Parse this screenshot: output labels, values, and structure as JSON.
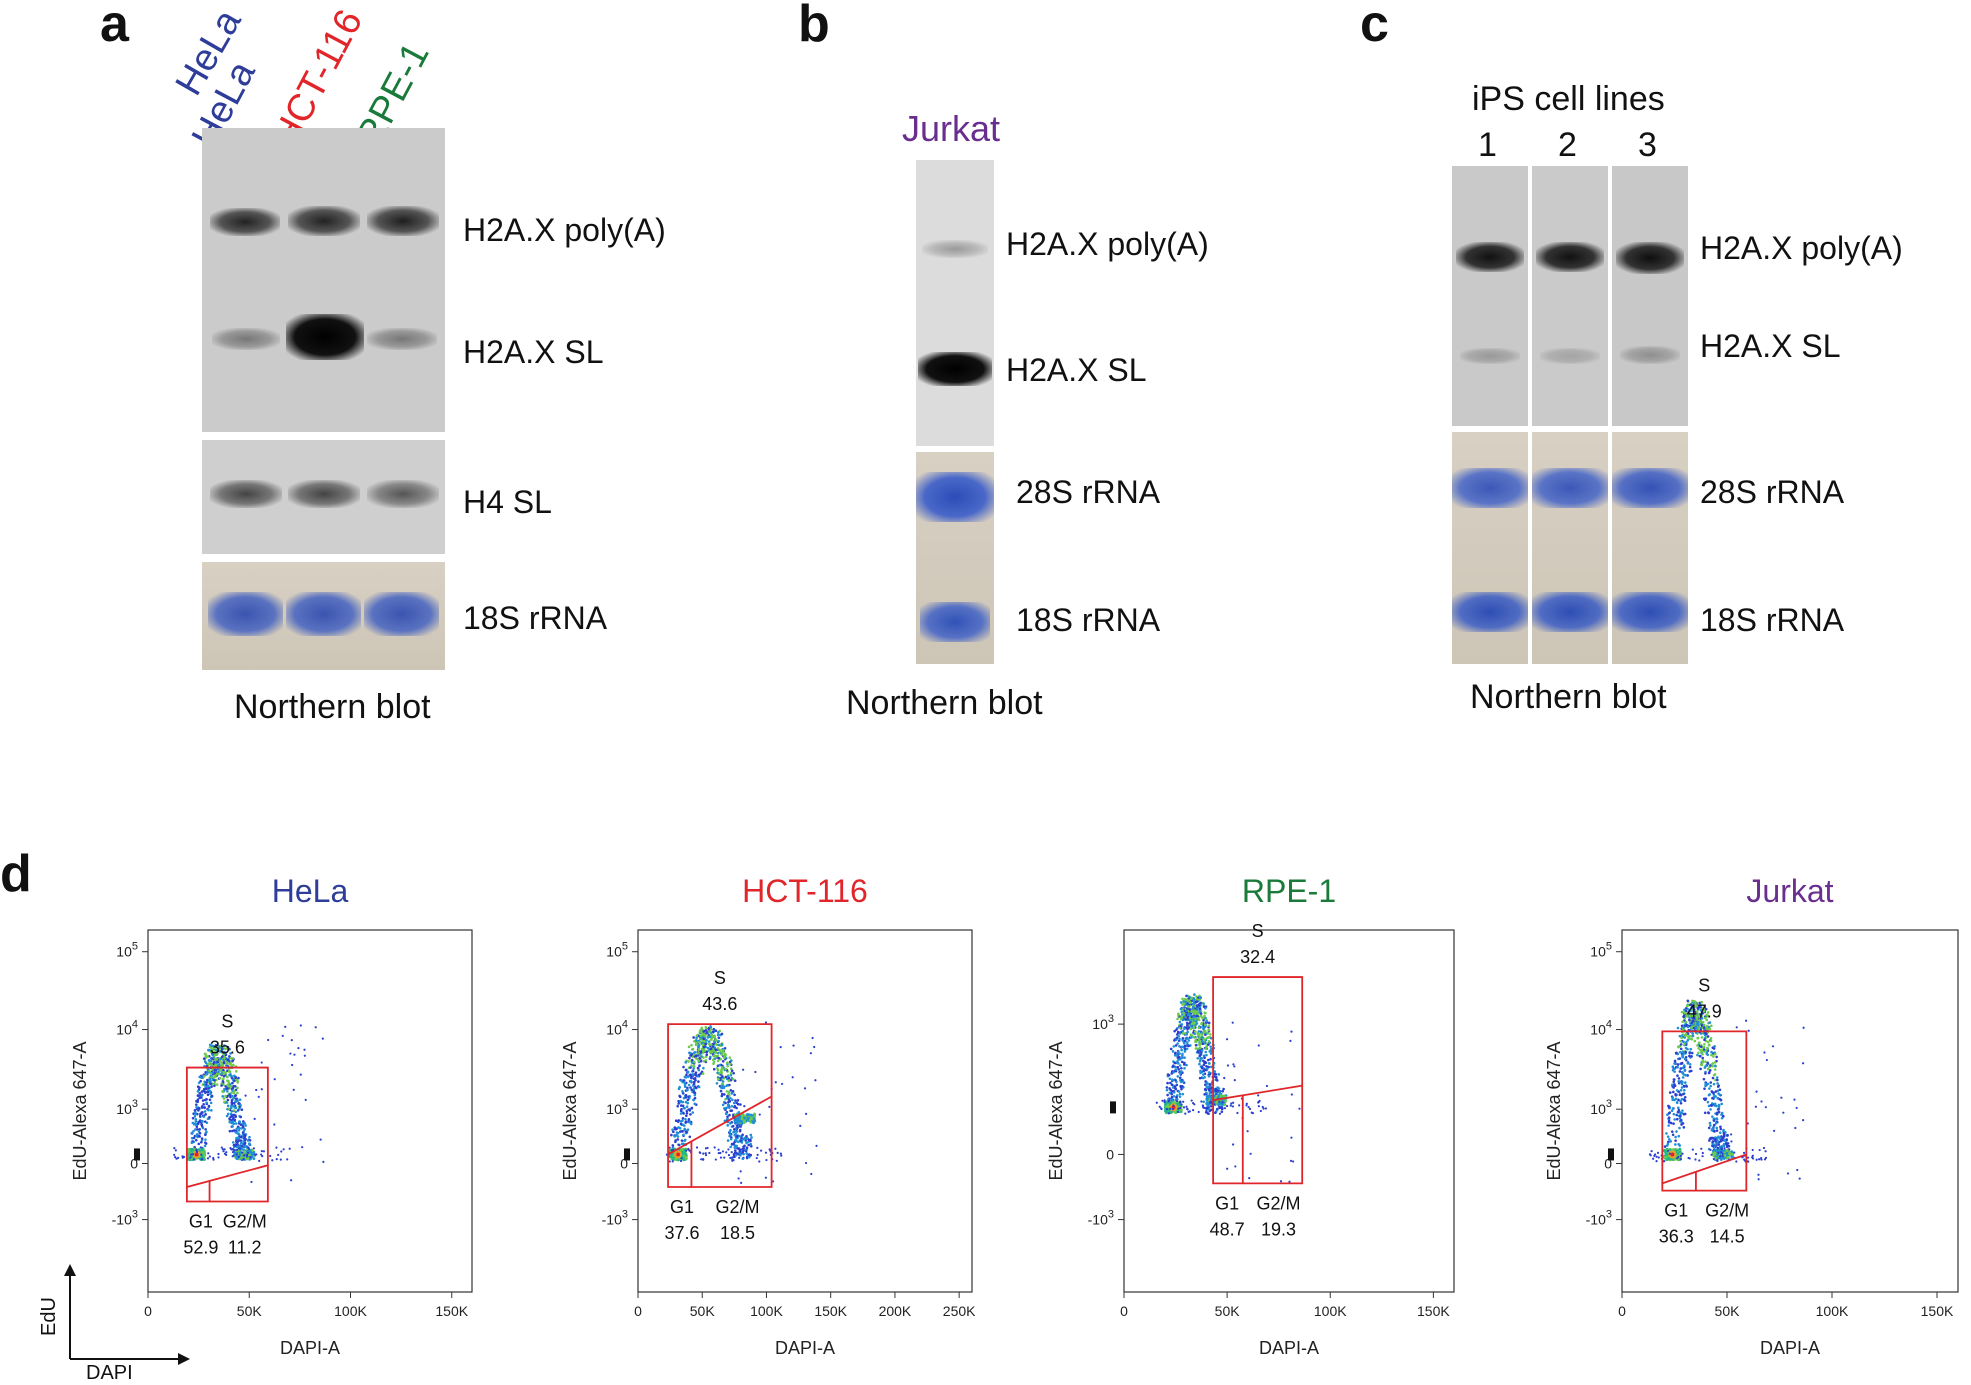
{
  "panels": {
    "a": {
      "label": "a",
      "lanes": [
        "HeLa",
        "HCT-116",
        "RPE-1"
      ],
      "lane_colors": [
        "#2e3d9a",
        "#e0262b",
        "#1a7a3a"
      ],
      "bands": [
        "H2A.X poly(A)",
        "H2A.X SL",
        "H4 SL",
        "18S rRNA"
      ],
      "caption": "Northern blot"
    },
    "b": {
      "label": "b",
      "lane": "Jurkat",
      "lane_color": "#6a2e8e",
      "bands": [
        "H2A.X poly(A)",
        "H2A.X SL",
        "28S rRNA",
        "18S rRNA"
      ],
      "caption": "Northern blot"
    },
    "c": {
      "label": "c",
      "header": "iPS cell lines",
      "lanes": [
        "1",
        "2",
        "3"
      ],
      "bands": [
        "H2A.X poly(A)",
        "H2A.X SL",
        "28S rRNA",
        "18S rRNA"
      ],
      "caption": "Northern blot"
    },
    "d": {
      "label": "d",
      "axes_legend": {
        "y": "EdU",
        "x": "DAPI"
      }
    }
  },
  "chart_data": [
    {
      "type": "scatter",
      "title": "HeLa",
      "title_color": "#2e3d9a",
      "xlabel": "DAPI-A",
      "ylabel": "EdU-Alexa 647-A",
      "x_ticks": [
        "0",
        "50K",
        "100K",
        "150K"
      ],
      "xlim": [
        0,
        160000
      ],
      "y_ticks": [
        "-10^3",
        "0",
        "10^3",
        "10^4",
        "10^5"
      ],
      "gates": [
        {
          "name": "S",
          "value": "35.6"
        },
        {
          "name": "G1",
          "value": "52.9"
        },
        {
          "name": "G2/M",
          "value": "11.2"
        }
      ]
    },
    {
      "type": "scatter",
      "title": "HCT-116",
      "title_color": "#e0262b",
      "xlabel": "DAPI-A",
      "ylabel": "EdU-Alexa 647-A",
      "x_ticks": [
        "0",
        "50K",
        "100K",
        "150K",
        "200K",
        "250K"
      ],
      "xlim": [
        0,
        260000
      ],
      "y_ticks": [
        "-10^3",
        "0",
        "10^3",
        "10^4",
        "10^5"
      ],
      "gates": [
        {
          "name": "S",
          "value": "43.6"
        },
        {
          "name": "G1",
          "value": "37.6"
        },
        {
          "name": "G2/M",
          "value": "18.5"
        }
      ]
    },
    {
      "type": "scatter",
      "title": "RPE-1",
      "title_color": "#1a7a3a",
      "xlabel": "DAPI-A",
      "ylabel": "EdU-Alexa 647-A",
      "x_ticks": [
        "0",
        "50K",
        "100K",
        "150K"
      ],
      "xlim": [
        0,
        160000
      ],
      "y_ticks": [
        "-10^3",
        "0",
        "10^3"
      ],
      "gates": [
        {
          "name": "S",
          "value": "32.4"
        },
        {
          "name": "G1",
          "value": "48.7"
        },
        {
          "name": "G2/M",
          "value": "19.3"
        }
      ]
    },
    {
      "type": "scatter",
      "title": "Jurkat",
      "title_color": "#6a2e8e",
      "xlabel": "DAPI-A",
      "ylabel": "EdU-Alexa 647-A",
      "x_ticks": [
        "0",
        "50K",
        "100K",
        "150K"
      ],
      "xlim": [
        0,
        160000
      ],
      "y_ticks": [
        "-10^3",
        "0",
        "10^3",
        "10^4",
        "10^5"
      ],
      "gates": [
        {
          "name": "S",
          "value": "47.9"
        },
        {
          "name": "G1",
          "value": "36.3"
        },
        {
          "name": "G2/M",
          "value": "14.5"
        }
      ]
    }
  ]
}
